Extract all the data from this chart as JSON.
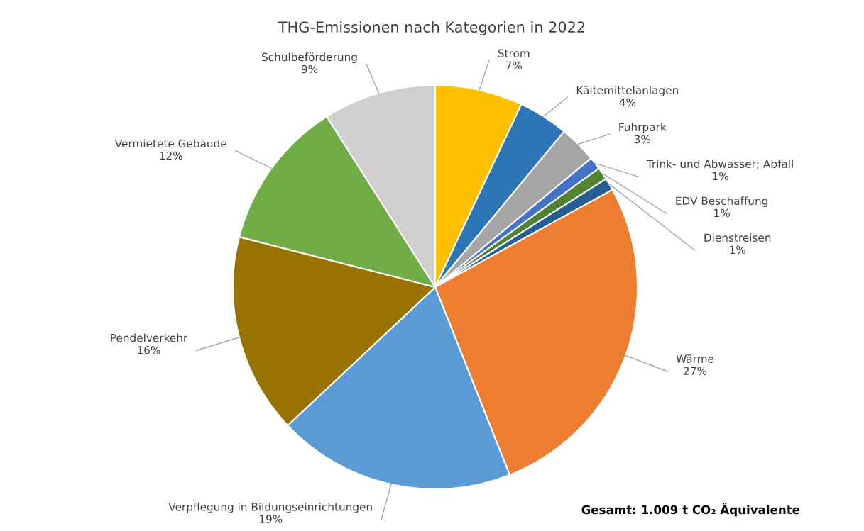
{
  "chart_data": {
    "type": "pie",
    "title": "THG-Emissionen nach Kategorien in 2022",
    "categories": [
      "Strom",
      "Kältemittelanlagen",
      "Fuhrpark",
      "Trink- und Abwasser; Abfall",
      "EDV Beschaffung",
      "Dienstreisen",
      "Wärme",
      "Verpflegung in Bildungseinrichtungen",
      "Pendelverkehr",
      "Vermietete Gebäude",
      "Schulbeförderung"
    ],
    "values": [
      7,
      4,
      3,
      1,
      1,
      1,
      27,
      19,
      16,
      12,
      9
    ],
    "value_labels": [
      "7%",
      "4%",
      "3%",
      "1%",
      "1%",
      "1%",
      "27%",
      "19%",
      "16%",
      "12%",
      "9%"
    ],
    "colors": [
      "#ffc000",
      "#2e75b6",
      "#a5a5a5",
      "#4472c4",
      "#548235",
      "#255e91",
      "#ed7d31",
      "#5b9bd5",
      "#997300",
      "#70ad47",
      "#d0cece"
    ],
    "annotations": [
      "Gesamt: 1.009 t CO₂ Äquivalente"
    ]
  }
}
